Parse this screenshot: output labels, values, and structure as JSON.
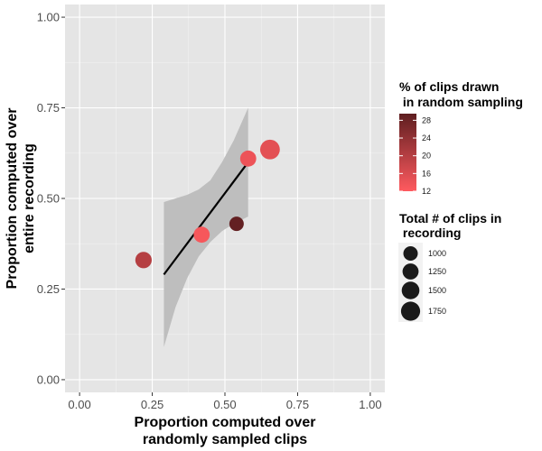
{
  "chart_data": {
    "type": "scatter",
    "x_title_lines": [
      "Proportion computed over",
      "randomly sampled clips"
    ],
    "y_title_lines": [
      "Proportion computed over",
      "entire recording"
    ],
    "xlim": [
      -0.05,
      1.05
    ],
    "ylim": [
      -0.035,
      1.035
    ],
    "x_ticks": [
      0.0,
      0.25,
      0.5,
      0.75,
      1.0
    ],
    "x_tick_labels": [
      "0.00",
      "0.25",
      "0.50",
      "0.75",
      "1.00"
    ],
    "y_ticks": [
      0.0,
      0.25,
      0.5,
      0.75,
      1.0
    ],
    "y_tick_labels": [
      "0.00",
      "0.25",
      "0.50",
      "0.75",
      "1.00"
    ],
    "grid": true,
    "points": [
      {
        "x": 0.22,
        "y": 0.33,
        "pct_clips": 20,
        "total_clips": 1300
      },
      {
        "x": 0.42,
        "y": 0.4,
        "pct_clips": 13,
        "total_clips": 1250
      },
      {
        "x": 0.54,
        "y": 0.43,
        "pct_clips": 29,
        "total_clips": 1000
      },
      {
        "x": 0.58,
        "y": 0.61,
        "pct_clips": 14,
        "total_clips": 1250
      },
      {
        "x": 0.655,
        "y": 0.635,
        "pct_clips": 15,
        "total_clips": 1850
      }
    ],
    "fit_line": {
      "x": [
        0.29,
        0.58
      ],
      "y": [
        0.29,
        0.6
      ]
    },
    "confidence_band": {
      "x": [
        0.29,
        0.33,
        0.37,
        0.41,
        0.45,
        0.49,
        0.53,
        0.58
      ],
      "upper": [
        0.49,
        0.5,
        0.51,
        0.525,
        0.55,
        0.6,
        0.66,
        0.75
      ],
      "lower": [
        0.09,
        0.2,
        0.28,
        0.34,
        0.38,
        0.41,
        0.43,
        0.45
      ]
    },
    "color_legend": {
      "title_lines": [
        "% of clips drawn",
        " in random sampling"
      ],
      "ticks": [
        12,
        16,
        20,
        24,
        28
      ],
      "range": [
        12,
        29.5
      ],
      "low_color": "#FF5A5F",
      "high_color": "#5E1E20"
    },
    "size_legend": {
      "title_lines": [
        "Total # of clips in",
        " recording"
      ],
      "values": [
        1000,
        1250,
        1500,
        1750
      ],
      "labels": [
        "1000",
        "1250",
        "1500",
        "1750"
      ]
    },
    "colors": {
      "panel_bg": "#E5E5E5",
      "grid_major": "#FFFFFF",
      "ribbon": "#BEBEBE",
      "fit_line": "#000000",
      "size_swatch": "#1A1A1A",
      "legend_key_bg": "#F2F2F2"
    }
  }
}
